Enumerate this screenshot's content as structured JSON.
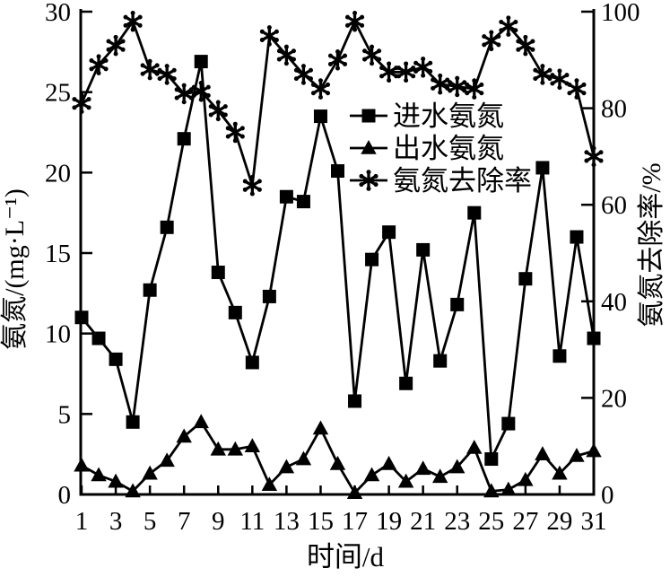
{
  "colors": {
    "foreground": "#000000",
    "background": "#ffffff"
  },
  "chart_data": {
    "type": "line",
    "title": "",
    "xlabel": "时间/d",
    "ylabel_left": "氨氮/(mg·L⁻¹)",
    "ylabel_right": "氨氮去除率/%",
    "ylim_left": [
      0,
      30
    ],
    "ylim_right": [
      0,
      100
    ],
    "xlim": [
      1,
      31
    ],
    "grid": false,
    "legend_position": "inside top-center, no border",
    "x": [
      1,
      2,
      3,
      4,
      5,
      6,
      7,
      8,
      9,
      10,
      11,
      12,
      13,
      14,
      15,
      16,
      17,
      18,
      19,
      20,
      21,
      22,
      23,
      24,
      25,
      26,
      27,
      28,
      29,
      30,
      31
    ],
    "x_ticks": [
      1,
      3,
      5,
      7,
      9,
      11,
      13,
      15,
      17,
      19,
      21,
      23,
      25,
      27,
      29,
      31
    ],
    "y_ticks_left": [
      0,
      5,
      10,
      15,
      20,
      25,
      30
    ],
    "y_ticks_right": [
      0,
      20,
      40,
      60,
      80,
      100
    ],
    "series": [
      {
        "name": "进水氨氮",
        "marker": "square",
        "axis": "left",
        "values": [
          11.0,
          9.7,
          8.4,
          4.5,
          12.7,
          16.6,
          22.1,
          26.9,
          13.8,
          11.3,
          8.2,
          12.3,
          18.5,
          18.2,
          23.5,
          20.1,
          5.8,
          14.6,
          16.3,
          6.9,
          15.2,
          8.3,
          11.8,
          17.5,
          2.2,
          4.4,
          13.4,
          20.3,
          8.6,
          16.0,
          9.7
        ]
      },
      {
        "name": "出水氨氮",
        "marker": "triangle",
        "axis": "left",
        "values": [
          1.8,
          1.2,
          0.8,
          0.2,
          1.3,
          2.1,
          3.6,
          4.5,
          2.8,
          2.8,
          3.0,
          0.6,
          1.7,
          2.2,
          4.1,
          1.9,
          0.1,
          1.2,
          1.9,
          0.8,
          1.6,
          1.1,
          1.7,
          2.9,
          0.2,
          0.3,
          0.9,
          2.5,
          1.3,
          2.4,
          2.7
        ]
      },
      {
        "name": "氨氮去除率",
        "marker": "asterisk",
        "axis": "right",
        "values": [
          81,
          89,
          93,
          98,
          88,
          87,
          83,
          83.5,
          79.5,
          75,
          64,
          95,
          91,
          87,
          84,
          90,
          98,
          91,
          87.5,
          87.5,
          88.5,
          85,
          84.5,
          84,
          94,
          97,
          93,
          87,
          86,
          84,
          70
        ]
      }
    ]
  }
}
